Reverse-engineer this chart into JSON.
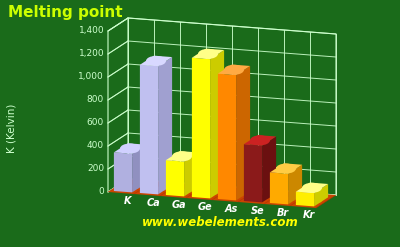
{
  "title": "Melting point",
  "ylabel": "K (Kelvin)",
  "elements": [
    "K",
    "Ca",
    "Ga",
    "Ge",
    "As",
    "Se",
    "Br",
    "Kr"
  ],
  "values": [
    336,
    1115,
    303,
    1211,
    1090,
    494,
    266,
    116
  ],
  "bar_colors_side": [
    "#9090c0",
    "#a0a0d0",
    "#cccc00",
    "#cccc00",
    "#cc6600",
    "#6b1010",
    "#cc8800",
    "#cccc00"
  ],
  "bar_colors_front": [
    "#b0b0e0",
    "#c0c0f0",
    "#ffff00",
    "#ffff00",
    "#ff8800",
    "#8b1a1a",
    "#ffaa00",
    "#ffee00"
  ],
  "bar_colors_top": [
    "#d0d0ff",
    "#d8d8ff",
    "#ffff88",
    "#ffff88",
    "#ffaa44",
    "#cc2222",
    "#ffcc44",
    "#ffff88"
  ],
  "background_color": "#1a6b1a",
  "grid_color": "#ccffcc",
  "title_color": "#ccff00",
  "axis_color": "#ccffcc",
  "floor_color": "#cc4400",
  "floor_color_dark": "#aa3300",
  "ylim": [
    0,
    1400
  ],
  "yticks": [
    0,
    200,
    400,
    600,
    800,
    1000,
    1200,
    1400
  ],
  "website": "www.webelements.com",
  "website_color": "#ffff00",
  "label_color": "#ffffff"
}
